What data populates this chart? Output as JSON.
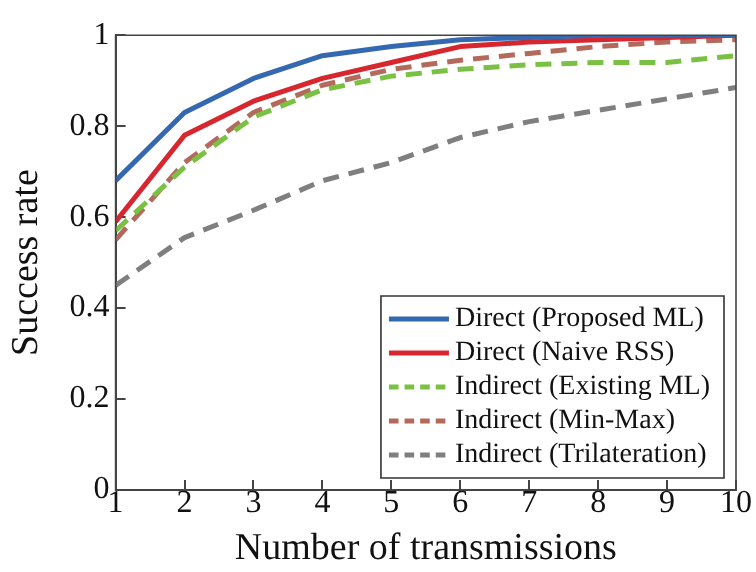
{
  "chart_data": {
    "type": "line",
    "xlabel": "Number of transmissions",
    "ylabel": "Success rate",
    "x": [
      1,
      2,
      3,
      4,
      5,
      6,
      7,
      8,
      9,
      10
    ],
    "xlim": [
      1,
      10
    ],
    "ylim": [
      0,
      1
    ],
    "xticks": [
      1,
      2,
      3,
      4,
      5,
      6,
      7,
      8,
      9,
      10
    ],
    "yticks": [
      0,
      0.2,
      0.4,
      0.6,
      0.8,
      1
    ],
    "grid": false,
    "legend": "bottom right",
    "marker": "none",
    "series": [
      {
        "name": "Direct (Proposed ML)",
        "color": "#3468b0",
        "line_style": "solid",
        "values": [
          0.68,
          0.83,
          0.905,
          0.955,
          0.975,
          0.99,
          0.995,
          1,
          1,
          1
        ]
      },
      {
        "name": "Direct (Naive RSS)",
        "color": "#d7262e",
        "line_style": "solid",
        "values": [
          0.59,
          0.78,
          0.855,
          0.905,
          0.94,
          0.975,
          0.985,
          0.99,
          0.995,
          1
        ]
      },
      {
        "name": "Indirect (Existing ML)",
        "color": "#7ac143",
        "line_style": "dashed",
        "values": [
          0.57,
          0.71,
          0.82,
          0.88,
          0.91,
          0.925,
          0.935,
          0.94,
          0.94,
          0.955
        ]
      },
      {
        "name": "Indirect (Min-Max)",
        "color": "#b36a5c",
        "line_style": "dashed",
        "values": [
          0.55,
          0.72,
          0.83,
          0.89,
          0.925,
          0.945,
          0.96,
          0.975,
          0.985,
          0.99
        ]
      },
      {
        "name": "Indirect (Trilateration)",
        "color": "#7f7f7f",
        "line_style": "dashed",
        "values": [
          0.45,
          0.555,
          0.615,
          0.68,
          0.72,
          0.775,
          0.81,
          0.835,
          0.86,
          0.885
        ]
      }
    ]
  }
}
